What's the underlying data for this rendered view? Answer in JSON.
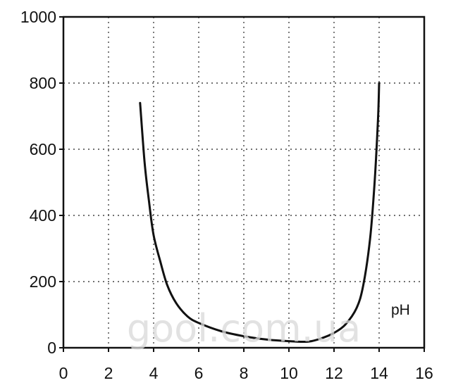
{
  "chart_data": {
    "type": "line",
    "title": "",
    "xlabel": "",
    "ylabel": "",
    "annotation": "pH",
    "watermark": "gool.com.ua",
    "xlim": [
      0,
      16
    ],
    "ylim": [
      0,
      1000
    ],
    "x_ticks": [
      "0",
      "2",
      "4",
      "6",
      "8",
      "10",
      "12",
      "14",
      "16"
    ],
    "y_ticks": [
      "0",
      "200",
      "400",
      "600",
      "800",
      "1000"
    ],
    "grid": true,
    "grid_style": "dotted",
    "line_color": "#111111",
    "series": [
      {
        "x": [
          3.4,
          3.6,
          3.8,
          4.0,
          4.3,
          4.6,
          5.0,
          5.5,
          6.0,
          7.0,
          8.0,
          9.0,
          10.0,
          10.6,
          11.0,
          11.5,
          12.0,
          12.5,
          13.0,
          13.3,
          13.6,
          13.8,
          13.95,
          14.0
        ],
        "y": [
          740,
          560,
          440,
          340,
          260,
          190,
          135,
          95,
          75,
          50,
          35,
          25,
          20,
          18,
          20,
          30,
          45,
          70,
          120,
          190,
          330,
          500,
          690,
          800
        ]
      }
    ]
  }
}
